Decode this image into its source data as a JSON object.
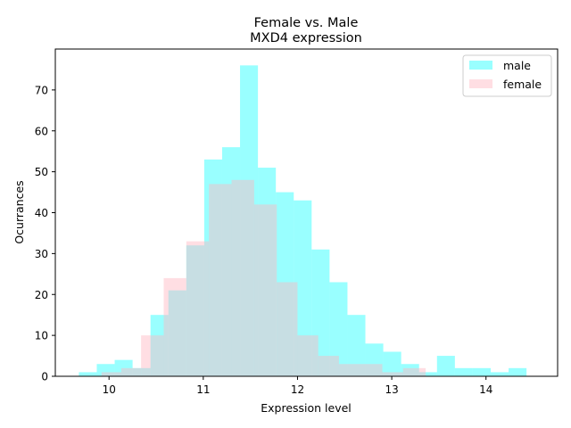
{
  "chart_data": {
    "type": "bar",
    "title_line1": "Female vs. Male",
    "title_line2": "MXD4 expression",
    "xlabel": "Expression level",
    "ylabel": "Ocurrances",
    "xlim": [
      9.43,
      14.76
    ],
    "ylim": [
      0,
      80
    ],
    "xticks": [
      10,
      11,
      12,
      13,
      14
    ],
    "yticks": [
      0,
      10,
      20,
      30,
      40,
      50,
      60,
      70
    ],
    "legend_position": "top-right",
    "series": [
      {
        "name": "male",
        "color": "#00ffff",
        "opacity": 0.4,
        "bins": [
          {
            "x0": 9.68,
            "x1": 9.87,
            "count": 1
          },
          {
            "x0": 9.87,
            "x1": 10.06,
            "count": 3
          },
          {
            "x0": 10.06,
            "x1": 10.25,
            "count": 4
          },
          {
            "x0": 10.25,
            "x1": 10.44,
            "count": 2
          },
          {
            "x0": 10.44,
            "x1": 10.63,
            "count": 15
          },
          {
            "x0": 10.63,
            "x1": 10.82,
            "count": 21
          },
          {
            "x0": 10.82,
            "x1": 11.01,
            "count": 32
          },
          {
            "x0": 11.01,
            "x1": 11.2,
            "count": 53
          },
          {
            "x0": 11.2,
            "x1": 11.39,
            "count": 56
          },
          {
            "x0": 11.39,
            "x1": 11.58,
            "count": 76
          },
          {
            "x0": 11.58,
            "x1": 11.77,
            "count": 51
          },
          {
            "x0": 11.77,
            "x1": 11.96,
            "count": 45
          },
          {
            "x0": 11.96,
            "x1": 12.15,
            "count": 43
          },
          {
            "x0": 12.15,
            "x1": 12.34,
            "count": 31
          },
          {
            "x0": 12.34,
            "x1": 12.53,
            "count": 23
          },
          {
            "x0": 12.53,
            "x1": 12.72,
            "count": 15
          },
          {
            "x0": 12.72,
            "x1": 12.91,
            "count": 8
          },
          {
            "x0": 12.91,
            "x1": 13.1,
            "count": 6
          },
          {
            "x0": 13.1,
            "x1": 13.29,
            "count": 3
          },
          {
            "x0": 13.29,
            "x1": 13.48,
            "count": 1
          },
          {
            "x0": 13.48,
            "x1": 13.67,
            "count": 5
          },
          {
            "x0": 13.67,
            "x1": 13.86,
            "count": 2
          },
          {
            "x0": 13.86,
            "x1": 14.05,
            "count": 2
          },
          {
            "x0": 14.05,
            "x1": 14.24,
            "count": 1
          },
          {
            "x0": 14.24,
            "x1": 14.43,
            "count": 2
          }
        ]
      },
      {
        "name": "female",
        "color": "#ffb6c1",
        "opacity": 0.45,
        "bins": [
          {
            "x0": 9.92,
            "x1": 10.13,
            "count": 1
          },
          {
            "x0": 10.13,
            "x1": 10.34,
            "count": 2
          },
          {
            "x0": 10.34,
            "x1": 10.45,
            "count": 10
          },
          {
            "x0": 10.45,
            "x1": 10.58,
            "count": 10
          },
          {
            "x0": 10.58,
            "x1": 10.82,
            "count": 24
          },
          {
            "x0": 10.82,
            "x1": 11.06,
            "count": 33
          },
          {
            "x0": 11.06,
            "x1": 11.3,
            "count": 47
          },
          {
            "x0": 11.3,
            "x1": 11.54,
            "count": 48
          },
          {
            "x0": 11.54,
            "x1": 11.78,
            "count": 42
          },
          {
            "x0": 11.78,
            "x1": 12.0,
            "count": 23
          },
          {
            "x0": 12.0,
            "x1": 12.22,
            "count": 10
          },
          {
            "x0": 12.22,
            "x1": 12.44,
            "count": 5
          },
          {
            "x0": 12.44,
            "x1": 12.9,
            "count": 3
          },
          {
            "x0": 12.9,
            "x1": 13.12,
            "count": 1
          },
          {
            "x0": 13.12,
            "x1": 13.36,
            "count": 2
          }
        ]
      }
    ]
  }
}
